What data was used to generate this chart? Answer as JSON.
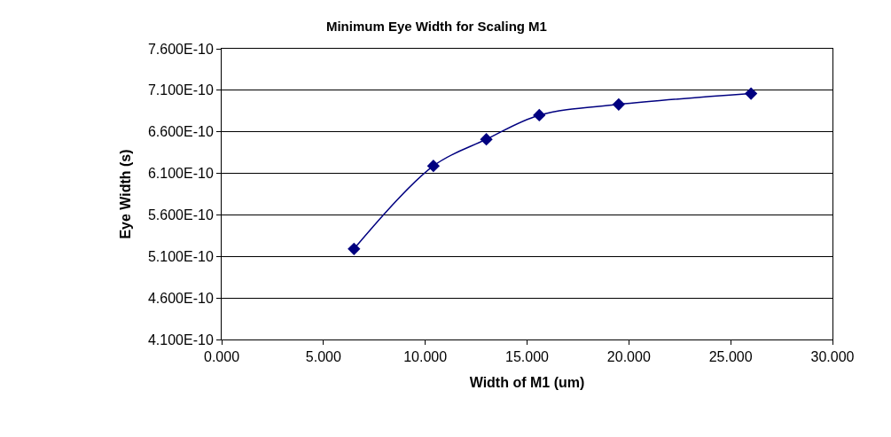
{
  "chart_data": {
    "type": "line",
    "title": "Minimum Eye Width for Scaling M1",
    "xlabel": "Width of M1 (um)",
    "ylabel": "Eye Width (s)",
    "x": [
      6.5,
      10.4,
      13.0,
      15.6,
      19.5,
      26.0
    ],
    "series": [
      {
        "color": "#000080",
        "values": [
          5.19e-10,
          6.19e-10,
          6.51e-10,
          6.8e-10,
          6.93e-10,
          7.06e-10
        ]
      }
    ],
    "xlim": [
      0,
      30
    ],
    "xticks": [
      {
        "value": 0,
        "label": "0.000"
      },
      {
        "value": 5,
        "label": "5.000"
      },
      {
        "value": 10,
        "label": "10.000"
      },
      {
        "value": 15,
        "label": "15.000"
      },
      {
        "value": 20,
        "label": "20.000"
      },
      {
        "value": 25,
        "label": "25.000"
      },
      {
        "value": 30,
        "label": "30.000"
      }
    ],
    "ylim": [
      4.1e-10,
      7.6e-10
    ],
    "yticks": [
      {
        "value": 4.1e-10,
        "label": "4.100E-10"
      },
      {
        "value": 4.6e-10,
        "label": "4.600E-10"
      },
      {
        "value": 5.1e-10,
        "label": "5.100E-10"
      },
      {
        "value": 5.6e-10,
        "label": "5.600E-10"
      },
      {
        "value": 6.1e-10,
        "label": "6.100E-10"
      },
      {
        "value": 6.6e-10,
        "label": "6.600E-10"
      },
      {
        "value": 7.1e-10,
        "label": "7.100E-10"
      },
      {
        "value": 7.6e-10,
        "label": "7.600E-10"
      }
    ],
    "grid": "y",
    "legend": false,
    "marker": "diamond",
    "line_style": "solid"
  }
}
